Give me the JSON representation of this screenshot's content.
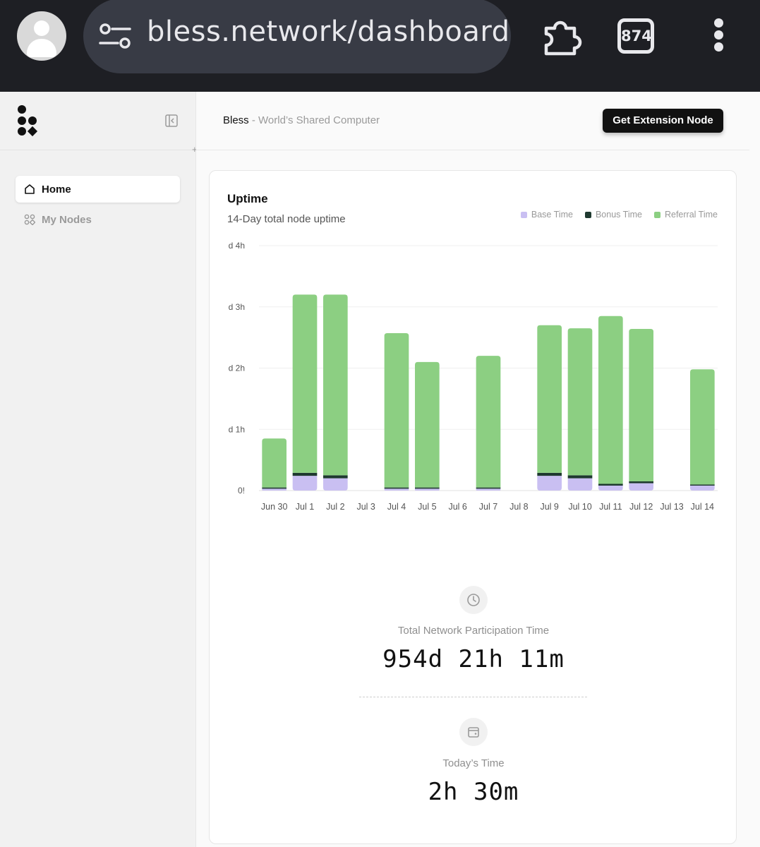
{
  "browser": {
    "url": "bless.network/dashboard",
    "tab_count": "874"
  },
  "sidebar": {
    "items": [
      {
        "label": "Home",
        "icon": "home-icon",
        "active": true
      },
      {
        "label": "My Nodes",
        "icon": "nodes-icon",
        "active": false
      }
    ]
  },
  "header": {
    "brand": "Bless",
    "tagline": " - World’s Shared Computer",
    "cta_label": "Get Extension Node"
  },
  "uptime": {
    "title": "Uptime",
    "subtitle": "14-Day total node uptime"
  },
  "chart_data": {
    "type": "bar",
    "stacked": true,
    "categories": [
      "Jun 30",
      "Jul 1",
      "Jul 2",
      "Jul 3",
      "Jul 4",
      "Jul 5",
      "Jul 6",
      "Jul 7",
      "Jul 8",
      "Jul 9",
      "Jul 10",
      "Jul 11",
      "Jul 12",
      "Jul 13",
      "Jul 14"
    ],
    "y_tick_labels": [
      "0!",
      "d 1h",
      "d 2h",
      "d 3h",
      "d 4h"
    ],
    "ylim_hours": [
      0,
      4
    ],
    "grid": true,
    "legend_position": "top-right",
    "series": [
      {
        "name": "Base Time",
        "color": "#c9bff2",
        "values": [
          0.03,
          0.24,
          0.2,
          0,
          0.03,
          0.03,
          0,
          0.03,
          0,
          0.24,
          0.2,
          0.08,
          0.12,
          0,
          0.08
        ]
      },
      {
        "name": "Bonus Time",
        "color": "#1f3a30",
        "values": [
          0.02,
          0.05,
          0.05,
          0,
          0.02,
          0.02,
          0,
          0.02,
          0,
          0.05,
          0.05,
          0.03,
          0.03,
          0,
          0.02
        ]
      },
      {
        "name": "Referral Time",
        "color": "#8ccf82",
        "values": [
          0.8,
          2.91,
          2.95,
          0,
          2.52,
          2.05,
          0,
          2.15,
          0,
          2.41,
          2.4,
          2.74,
          2.49,
          0,
          1.88
        ]
      }
    ]
  },
  "stats": {
    "total_label": "Total Network Participation Time",
    "total_value": "954d 21h 11m",
    "today_label": "Today’s Time",
    "today_value": "2h 30m"
  }
}
